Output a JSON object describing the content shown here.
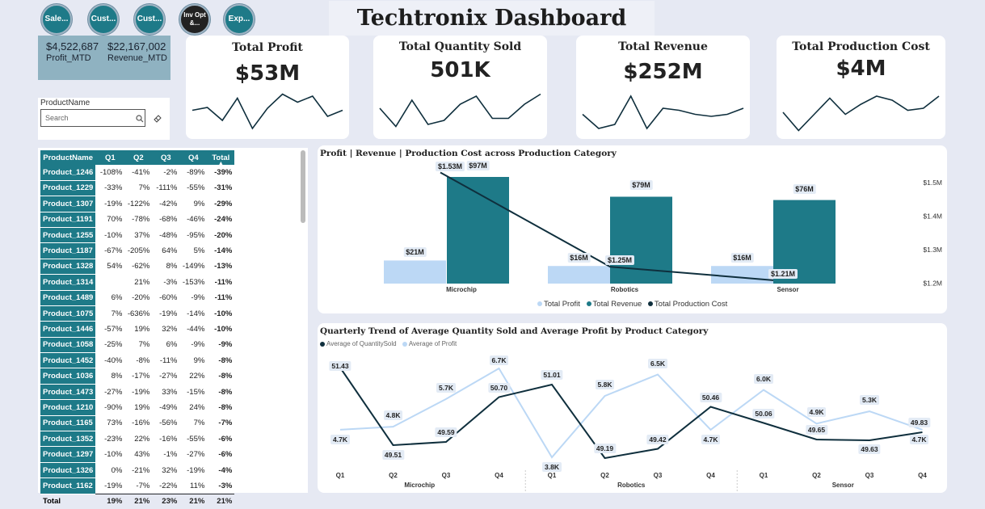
{
  "nav": [
    {
      "label": "Sale..."
    },
    {
      "label": "Cust..."
    },
    {
      "label": "Cust..."
    },
    {
      "label": "Inv Opt &..."
    },
    {
      "label": "Exp..."
    }
  ],
  "title": "Techtronix Dashboard",
  "mtd": {
    "profit_value": "$4,522,687",
    "profit_label": "Profit_MTD",
    "revenue_value": "$22,167,002",
    "revenue_label": "Revenue_MTD"
  },
  "kpis": [
    {
      "title": "Total Profit",
      "value": "$53M",
      "spark": [
        0.55,
        0.62,
        0.3,
        0.85,
        0.1,
        0.6,
        0.95,
        0.75,
        0.9,
        0.4,
        0.55
      ]
    },
    {
      "title": "Total Quantity Sold",
      "value": "501K",
      "spark": [
        0.6,
        0.15,
        0.8,
        0.2,
        0.3,
        0.7,
        0.9,
        0.35,
        0.35,
        0.7,
        0.95
      ]
    },
    {
      "title": "Total Revenue",
      "value": "$252M",
      "spark": [
        0.45,
        0.1,
        0.2,
        0.9,
        0.1,
        0.6,
        0.55,
        0.45,
        0.4,
        0.45,
        0.6
      ]
    },
    {
      "title": "Total Production Cost",
      "value": "$4M",
      "spark": [
        0.5,
        0.05,
        0.45,
        0.85,
        0.45,
        0.7,
        0.9,
        0.8,
        0.55,
        0.6,
        0.9
      ]
    }
  ],
  "slicer": {
    "label": "ProductName",
    "placeholder": "Search"
  },
  "table": {
    "headers": [
      "ProductName",
      "Q1",
      "Q2",
      "Q3",
      "Q4",
      "Total"
    ],
    "rows": [
      [
        "Product_1246",
        "-108%",
        "-41%",
        "-2%",
        "-89%",
        "-39%"
      ],
      [
        "Product_1229",
        "-33%",
        "7%",
        "-111%",
        "-55%",
        "-31%"
      ],
      [
        "Product_1307",
        "-19%",
        "-122%",
        "-42%",
        "9%",
        "-29%"
      ],
      [
        "Product_1191",
        "70%",
        "-78%",
        "-68%",
        "-46%",
        "-24%"
      ],
      [
        "Product_1255",
        "-10%",
        "37%",
        "-48%",
        "-95%",
        "-20%"
      ],
      [
        "Product_1187",
        "-67%",
        "-205%",
        "64%",
        "5%",
        "-14%"
      ],
      [
        "Product_1328",
        "54%",
        "-62%",
        "8%",
        "-149%",
        "-13%"
      ],
      [
        "Product_1314",
        "",
        "21%",
        "-3%",
        "-153%",
        "-11%"
      ],
      [
        "Product_1489",
        "6%",
        "-20%",
        "-60%",
        "-9%",
        "-11%"
      ],
      [
        "Product_1075",
        "7%",
        "-636%",
        "-19%",
        "-14%",
        "-10%"
      ],
      [
        "Product_1446",
        "-57%",
        "19%",
        "32%",
        "-44%",
        "-10%"
      ],
      [
        "Product_1058",
        "-25%",
        "7%",
        "6%",
        "-9%",
        "-9%"
      ],
      [
        "Product_1452",
        "-40%",
        "-8%",
        "-11%",
        "9%",
        "-8%"
      ],
      [
        "Product_1036",
        "8%",
        "-17%",
        "-27%",
        "22%",
        "-8%"
      ],
      [
        "Product_1473",
        "-27%",
        "-19%",
        "33%",
        "-15%",
        "-8%"
      ],
      [
        "Product_1210",
        "-90%",
        "19%",
        "-49%",
        "24%",
        "-8%"
      ],
      [
        "Product_1165",
        "73%",
        "-16%",
        "-56%",
        "7%",
        "-7%"
      ],
      [
        "Product_1352",
        "-23%",
        "22%",
        "-16%",
        "-55%",
        "-6%"
      ],
      [
        "Product_1297",
        "-10%",
        "43%",
        "-1%",
        "-27%",
        "-6%"
      ],
      [
        "Product_1326",
        "0%",
        "-21%",
        "32%",
        "-19%",
        "-4%"
      ],
      [
        "Product_1162",
        "-19%",
        "-7%",
        "-22%",
        "11%",
        "-3%"
      ]
    ],
    "total": [
      "Total",
      "19%",
      "21%",
      "23%",
      "21%",
      "21%"
    ]
  },
  "chart_data": [
    {
      "type": "bar",
      "title": "Profit | Revenue | Production Cost across Production Category",
      "categories": [
        "Microchip",
        "Robotics",
        "Sensor"
      ],
      "series": [
        {
          "name": "Total Profit",
          "values": [
            21,
            16,
            16
          ],
          "labels": [
            "$21M",
            "$16M",
            "$16M"
          ],
          "color": "#bcd8f5"
        },
        {
          "name": "Total Revenue",
          "values": [
            97,
            79,
            76
          ],
          "labels": [
            "$97M",
            "$79M",
            "$76M"
          ],
          "color": "#1e7a88"
        },
        {
          "name": "Total Production Cost",
          "type": "line",
          "axis": "right",
          "values": [
            1.53,
            1.25,
            1.21
          ],
          "labels": [
            "$1.53M",
            "$1.25M",
            "$1.21M"
          ],
          "color": "#0f2f3d"
        }
      ],
      "y2_ticks": [
        "$1.5M",
        "$1.4M",
        "$1.3M",
        "$1.2M"
      ],
      "y2lim": [
        1.2,
        1.5
      ],
      "legend": "bottom"
    },
    {
      "type": "line",
      "title": "Quarterly Trend of Average Quantity Sold and Average Profit by Product Category",
      "groups": [
        "Microchip",
        "Robotics",
        "Sensor"
      ],
      "x": [
        "Q1",
        "Q2",
        "Q3",
        "Q4",
        "Q1",
        "Q2",
        "Q3",
        "Q4",
        "Q1",
        "Q2",
        "Q3",
        "Q4"
      ],
      "series": [
        {
          "name": "Average of QuantitySold",
          "values": [
            51.43,
            49.51,
            49.59,
            50.7,
            51.01,
            49.19,
            49.42,
            50.46,
            50.06,
            49.65,
            49.63,
            49.83
          ],
          "labels": [
            "51.43",
            "49.51",
            "49.59",
            "50.70",
            "51.01",
            "49.19",
            "49.42",
            "50.46",
            "50.06",
            "49.65",
            "49.63",
            "49.83"
          ],
          "color": "#0f2f3d"
        },
        {
          "name": "Average of Profit",
          "values": [
            4.7,
            4.8,
            5.7,
            6.7,
            3.8,
            5.8,
            6.5,
            4.7,
            6.0,
            4.9,
            5.3,
            4.7
          ],
          "labels": [
            "4.7K",
            "4.8K",
            "5.7K",
            "6.7K",
            "3.8K",
            "5.8K",
            "6.5K",
            "4.7K",
            "6.0K",
            "4.9K",
            "5.3K",
            "4.7K"
          ],
          "color": "#bcd8f5"
        }
      ],
      "legend": "top-left"
    }
  ]
}
